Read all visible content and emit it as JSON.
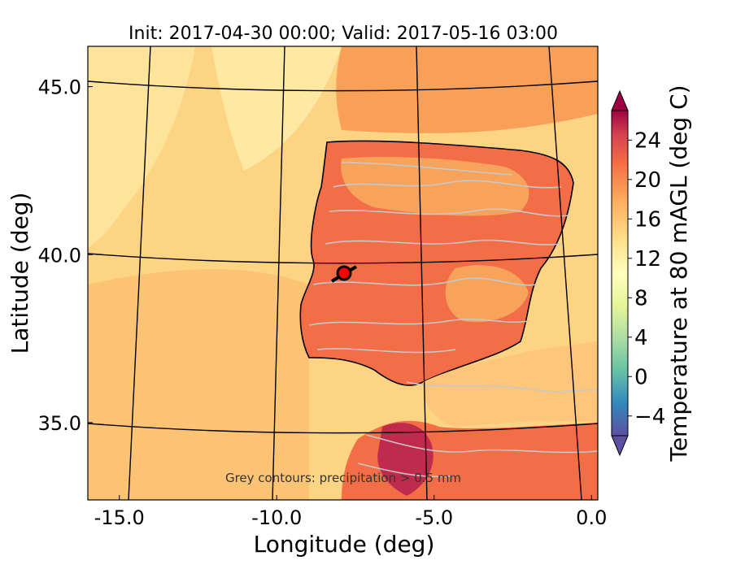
{
  "chart_data": {
    "type": "heatmap",
    "title": "Init: 2017-04-30 00:00; Valid: 2017-05-16 03:00",
    "xlabel": "Longitude (deg)",
    "ylabel": "Latitude (deg)",
    "xlim": [
      -16.0,
      0.2
    ],
    "ylim": [
      32.7,
      46.2
    ],
    "x_ticks": [
      "-15.0",
      "-10.0",
      "-5.0",
      "0.0"
    ],
    "y_ticks": [
      "35.0",
      "40.0",
      "45.0"
    ],
    "meridians": [
      -15,
      -10,
      -5,
      0
    ],
    "parallels": [
      35,
      40,
      45
    ],
    "grid": true,
    "colorbar": {
      "label": "Temperature at 80 mAGL (deg C)",
      "range": [
        -6,
        27
      ],
      "ticks": [
        "24",
        "20",
        "16",
        "12",
        "8",
        "4",
        "0",
        "−4"
      ],
      "tick_values": [
        24,
        20,
        16,
        12,
        8,
        4,
        0,
        -4
      ],
      "colormap": "Spectral_r",
      "extend": "both"
    },
    "annotation": "Grey contours: precipitation > 0.5 mm",
    "marker": {
      "lon": -7.6,
      "lat": 39.4,
      "color": "#ff0000"
    },
    "fields": {
      "ocean_temp_range": [
        13,
        16
      ],
      "interior_temp_range": [
        15,
        21
      ],
      "north_africa_temp_range": [
        22,
        27
      ]
    }
  }
}
